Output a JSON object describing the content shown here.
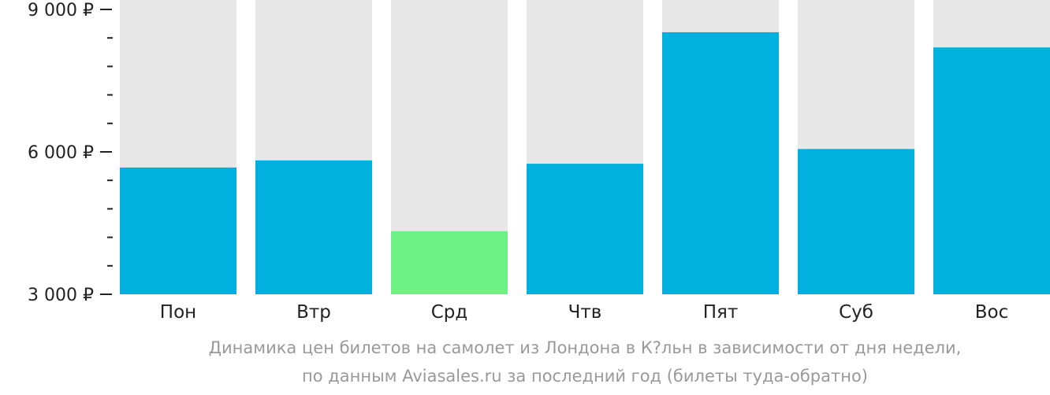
{
  "chart_data": {
    "type": "bar",
    "categories": [
      "Пон",
      "Втр",
      "Срд",
      "Чтв",
      "Пят",
      "Суб",
      "Вос"
    ],
    "values": [
      5670,
      5820,
      4330,
      5750,
      8520,
      6060,
      8200
    ],
    "y_ticks": [
      {
        "value": 9000,
        "label": "9 000 ₽"
      },
      {
        "value": 6000,
        "label": "6 000 ₽"
      },
      {
        "value": 3000,
        "label": "3 000 ₽"
      }
    ],
    "minor_tick_step": 600,
    "ylim": [
      3000,
      9000
    ],
    "grid": false,
    "highlight_index": 2,
    "colors": {
      "bar": "#00b0dd",
      "highlight": "#6ef286",
      "background_column": "#e8e8e8",
      "axis": "#222222",
      "caption": "#999999"
    }
  },
  "caption": {
    "line1": "Динамика цен билетов на самолет из Лондона в К?льн в зависимости от дня недели,",
    "line2": "по данным Aviasales.ru за последний год (билеты туда-обратно)"
  }
}
